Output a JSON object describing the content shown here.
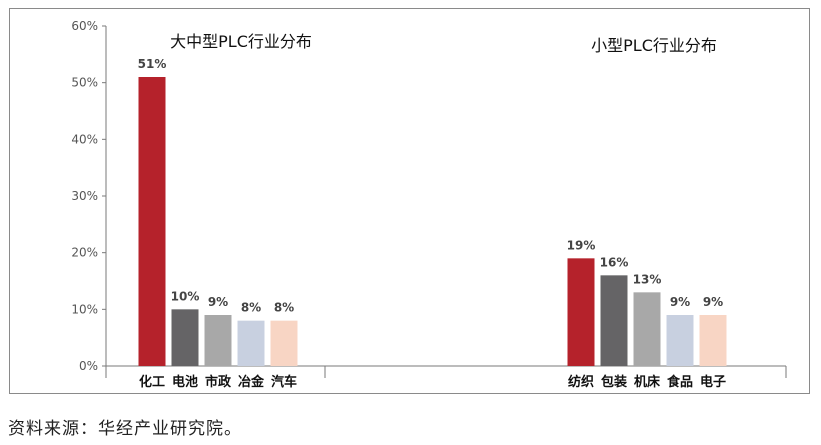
{
  "chart_data": {
    "type": "bar",
    "ylim": [
      0,
      60
    ],
    "yticks": [
      "0%",
      "10%",
      "20%",
      "30%",
      "40%",
      "50%",
      "60%"
    ],
    "grid": false,
    "panels": [
      {
        "title": "大中型PLC行业分布",
        "categories": [
          "化工",
          "电池",
          "市政",
          "冶金",
          "汽车"
        ],
        "values": [
          51,
          10,
          9,
          8,
          8
        ],
        "labels": [
          "51%",
          "10%",
          "9%",
          "8%",
          "8%"
        ],
        "colors": [
          "#b5222b",
          "#656466",
          "#a8a8a8",
          "#c8d0e0",
          "#f8d5c4"
        ]
      },
      {
        "title": "小型PLC行业分布",
        "categories": [
          "纺织",
          "包装",
          "机床",
          "食品",
          "电子"
        ],
        "values": [
          19,
          16,
          13,
          9,
          9
        ],
        "labels": [
          "19%",
          "16%",
          "13%",
          "9%",
          "9%"
        ],
        "colors": [
          "#b5222b",
          "#656466",
          "#a8a8a8",
          "#c8d0e0",
          "#f8d5c4"
        ]
      }
    ]
  },
  "source": "资料来源：华经产业研究院。"
}
